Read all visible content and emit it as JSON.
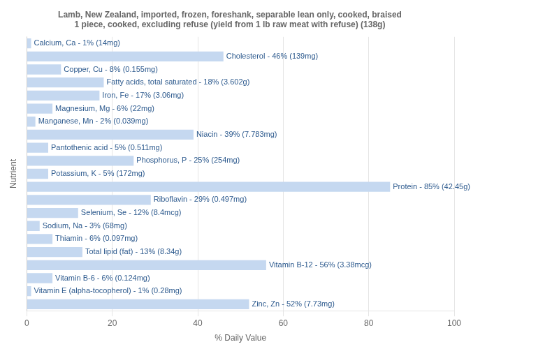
{
  "chart_data": {
    "type": "bar",
    "title": "Lamb, New Zealand, imported, frozen, foreshank, separable lean only, cooked, braised\n1 piece, cooked, excluding refuse (yield from 1 lb raw meat with refuse) (138g)",
    "xlabel": "% Daily Value",
    "ylabel": "Nutrient",
    "orientation": "horizontal",
    "color": "#c5d8f0",
    "categories": [
      "Calcium, Ca - 1% (14mg)",
      "Cholesterol - 46% (139mg)",
      "Copper, Cu - 8% (0.155mg)",
      "Fatty acids, total saturated - 18% (3.602g)",
      "Iron, Fe - 17% (3.06mg)",
      "Magnesium, Mg - 6% (22mg)",
      "Manganese, Mn - 2% (0.039mg)",
      "Niacin - 39% (7.783mg)",
      "Pantothenic acid - 5% (0.511mg)",
      "Phosphorus, P - 25% (254mg)",
      "Potassium, K - 5% (172mg)",
      "Protein - 85% (42.45g)",
      "Riboflavin - 29% (0.497mg)",
      "Selenium, Se - 12% (8.4mcg)",
      "Sodium, Na - 3% (68mg)",
      "Thiamin - 6% (0.097mg)",
      "Total lipid (fat) - 13% (8.34g)",
      "Vitamin B-12 - 56% (3.38mcg)",
      "Vitamin B-6 - 6% (0.124mg)",
      "Vitamin E (alpha-tocopherol) - 1% (0.28mg)",
      "Zinc, Zn - 52% (7.73mg)"
    ],
    "values": [
      1,
      46,
      8,
      18,
      17,
      6,
      2,
      39,
      5,
      25,
      5,
      85,
      29,
      12,
      3,
      6,
      13,
      56,
      6,
      1,
      52
    ],
    "xlim": [
      0,
      100
    ],
    "xticks": [
      0,
      20,
      40,
      60,
      80,
      100
    ],
    "grid": true,
    "tick_labels": "x"
  }
}
